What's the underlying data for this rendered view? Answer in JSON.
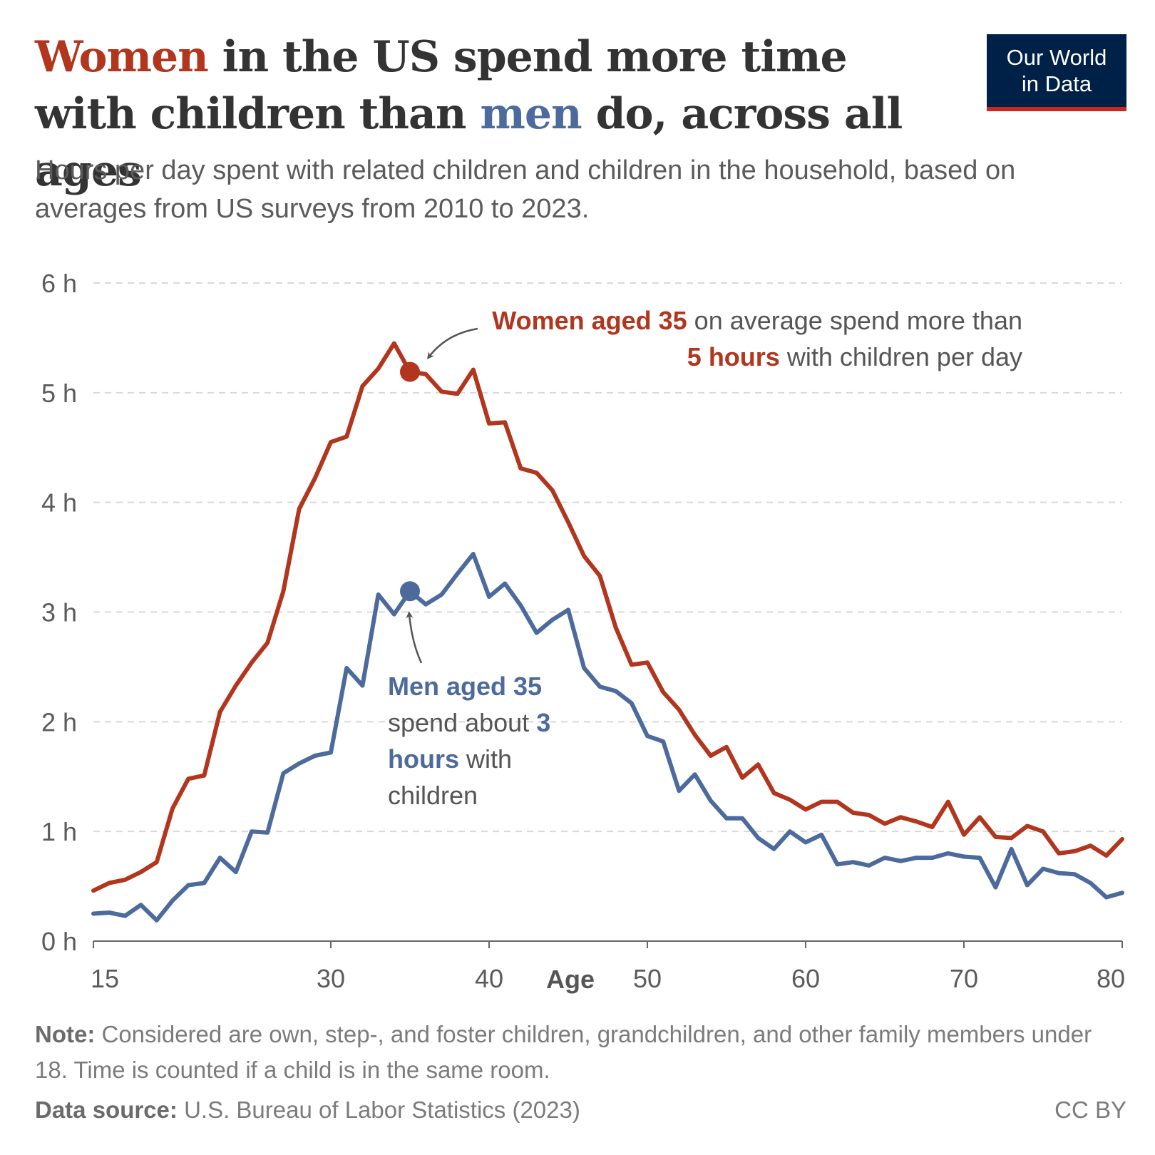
{
  "title": {
    "part1": "Women",
    "part2": " in the US spend more time with children than ",
    "part3": "men",
    "part4": " do, across all ages"
  },
  "subtitle": "Hours per day spent with related children and children in the household, based on averages from US surveys from 2010 to 2023.",
  "logo": {
    "line1": "Our World",
    "line2": "in Data"
  },
  "annotations": {
    "women": {
      "bold1": "Women aged 35",
      "text1": " on average spend more than ",
      "bold2": "5 hours",
      "text2": " with children per day"
    },
    "men": {
      "bold1": "Men aged 35",
      "text1": " spend about ",
      "bold2": "3 hours",
      "text2": " with children"
    }
  },
  "note": {
    "label": "Note:",
    "text": " Considered are own, step-, and foster children, grandchildren, and other family members under 18. Time is counted if a child is in the same room."
  },
  "source": {
    "label": "Data source:",
    "text": " U.S. Bureau of Labor Statistics (2023)"
  },
  "license": "CC BY",
  "colors": {
    "women": "#b2351d",
    "men": "#4c6a9c",
    "grid": "#d9d9d9",
    "axis": "#666666"
  },
  "chart_data": {
    "type": "line",
    "title": "Hours per day spent with related children and children in the household",
    "xlabel": "Age",
    "ylabel": "",
    "xlim": [
      15,
      80
    ],
    "ylim": [
      0,
      6
    ],
    "xticks": [
      15,
      30,
      40,
      50,
      60,
      70,
      80
    ],
    "yticks": [
      0,
      1,
      2,
      3,
      4,
      5,
      6
    ],
    "ytick_labels": [
      "0 h",
      "1 h",
      "2 h",
      "3 h",
      "4 h",
      "5 h",
      "6 h"
    ],
    "grid": true,
    "x": [
      15,
      16,
      17,
      18,
      19,
      20,
      21,
      22,
      23,
      24,
      25,
      26,
      27,
      28,
      29,
      30,
      31,
      32,
      33,
      34,
      35,
      36,
      37,
      38,
      39,
      40,
      41,
      42,
      43,
      44,
      45,
      46,
      47,
      48,
      49,
      50,
      51,
      52,
      53,
      54,
      55,
      56,
      57,
      58,
      59,
      60,
      61,
      62,
      63,
      64,
      65,
      66,
      67,
      68,
      69,
      70,
      71,
      72,
      73,
      74,
      75,
      76,
      77,
      78,
      79,
      80
    ],
    "series": [
      {
        "name": "Women",
        "values": [
          0.46,
          0.53,
          0.56,
          0.63,
          0.72,
          1.21,
          1.48,
          1.51,
          2.09,
          2.33,
          2.54,
          2.72,
          3.19,
          3.94,
          4.22,
          4.55,
          4.6,
          5.06,
          5.22,
          5.45,
          5.19,
          5.17,
          5.01,
          4.99,
          5.21,
          4.72,
          4.73,
          4.31,
          4.27,
          4.11,
          3.82,
          3.51,
          3.33,
          2.86,
          2.52,
          2.54,
          2.27,
          2.11,
          1.88,
          1.69,
          1.77,
          1.49,
          1.61,
          1.35,
          1.29,
          1.2,
          1.27,
          1.27,
          1.17,
          1.15,
          1.07,
          1.13,
          1.09,
          1.04,
          1.27,
          0.97,
          1.13,
          0.95,
          0.94,
          1.05,
          1.0,
          0.8,
          0.82,
          0.87,
          0.78,
          0.93
        ]
      },
      {
        "name": "Men",
        "values": [
          0.25,
          0.26,
          0.23,
          0.33,
          0.19,
          0.37,
          0.51,
          0.53,
          0.76,
          0.63,
          1.0,
          0.99,
          1.53,
          1.62,
          1.69,
          1.72,
          2.49,
          2.33,
          3.16,
          2.98,
          3.19,
          3.07,
          3.16,
          3.35,
          3.53,
          3.14,
          3.26,
          3.06,
          2.81,
          2.93,
          3.02,
          2.49,
          2.32,
          2.28,
          2.17,
          1.87,
          1.82,
          1.37,
          1.52,
          1.28,
          1.12,
          1.12,
          0.94,
          0.84,
          1.0,
          0.9,
          0.97,
          0.7,
          0.72,
          0.69,
          0.76,
          0.73,
          0.76,
          0.76,
          0.8,
          0.77,
          0.76,
          0.49,
          0.84,
          0.51,
          0.66,
          0.62,
          0.61,
          0.53,
          0.4,
          0.44
        ]
      }
    ],
    "highlights": [
      {
        "series": "Women",
        "x": 35,
        "y": 5.19
      },
      {
        "series": "Men",
        "x": 35,
        "y": 3.19
      }
    ]
  }
}
